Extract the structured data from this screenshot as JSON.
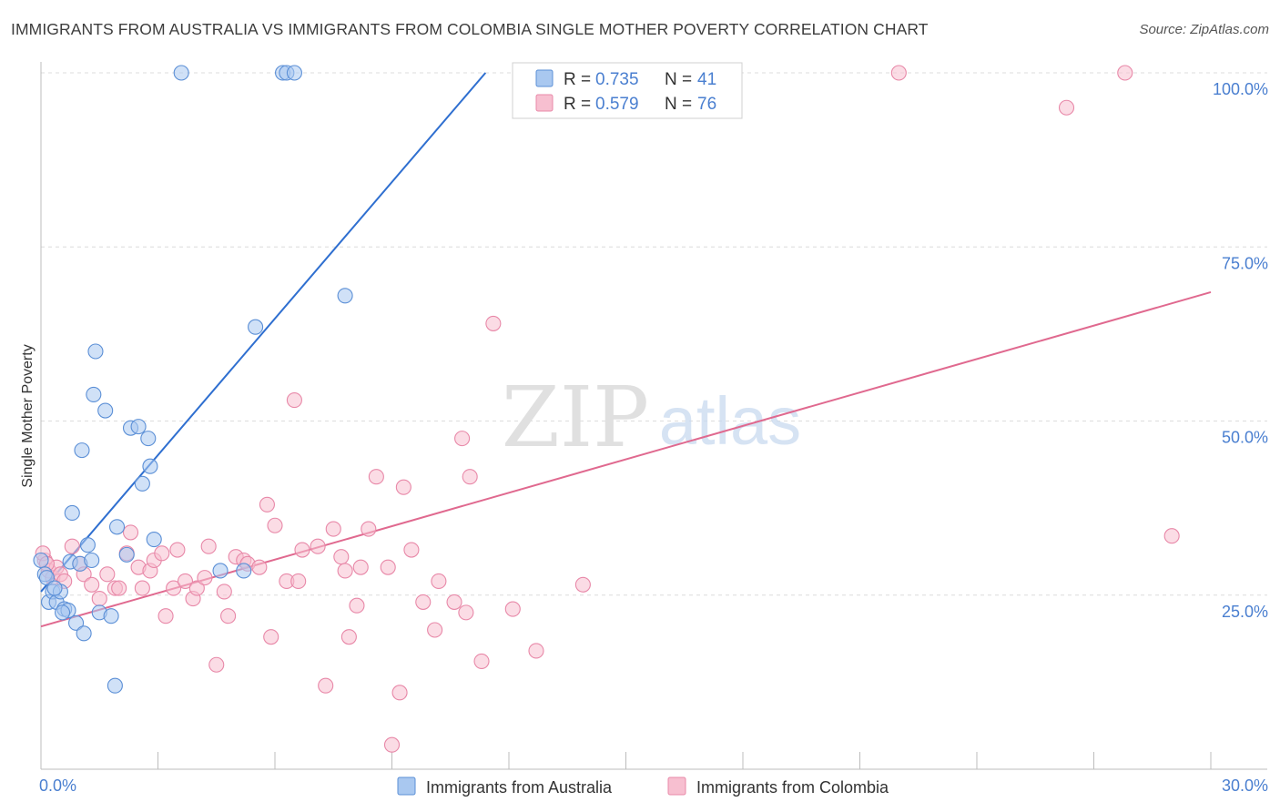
{
  "header": {
    "title": "IMMIGRANTS FROM AUSTRALIA VS IMMIGRANTS FROM COLOMBIA SINGLE MOTHER POVERTY CORRELATION CHART",
    "source": "Source: ZipAtlas.com"
  },
  "watermark": {
    "zip": "ZIP",
    "atlas": "atlas"
  },
  "colors": {
    "australia_fill": "#a9c8f0",
    "australia_stroke": "#5b8fd6",
    "australia_line": "#2f6fd0",
    "colombia_fill": "#f7bfd0",
    "colombia_stroke": "#e888a8",
    "colombia_line": "#e0698f",
    "axis_label": "#4a7fd0",
    "grid": "#dcdcdc"
  },
  "chart_data": {
    "type": "scatter",
    "title": "IMMIGRANTS FROM AUSTRALIA VS IMMIGRANTS FROM COLOMBIA SINGLE MOTHER POVERTY CORRELATION CHART",
    "xlabel": "",
    "ylabel": "Single Mother Poverty",
    "xlim": [
      0,
      30
    ],
    "ylim": [
      0,
      100
    ],
    "x_tick_labels": [
      "0.0%",
      "30.0%"
    ],
    "y_tick_labels": [
      "25.0%",
      "50.0%",
      "75.0%",
      "100.0%"
    ],
    "y_ticks": [
      25,
      50,
      75,
      100
    ],
    "legend_position": "top-center",
    "series": [
      {
        "name": "Immigrants from Australia",
        "r_label": "R =",
        "r_value": "0.735",
        "n_label": "N =",
        "n_value": "41",
        "trend": {
          "x0": 0.0,
          "y0": 25.5,
          "x1": 11.4,
          "y1": 100.0
        },
        "points": [
          [
            0.0,
            30.0
          ],
          [
            0.1,
            28.0
          ],
          [
            0.2,
            24.0
          ],
          [
            0.3,
            25.5
          ],
          [
            0.4,
            24.0
          ],
          [
            0.5,
            25.5
          ],
          [
            0.6,
            23.0
          ],
          [
            0.7,
            22.8
          ],
          [
            0.75,
            29.8
          ],
          [
            0.8,
            36.8
          ],
          [
            0.9,
            21.0
          ],
          [
            1.0,
            29.5
          ],
          [
            1.05,
            45.8
          ],
          [
            1.1,
            19.5
          ],
          [
            1.2,
            32.2
          ],
          [
            1.3,
            30.0
          ],
          [
            1.35,
            53.8
          ],
          [
            1.4,
            60.0
          ],
          [
            1.5,
            22.5
          ],
          [
            1.65,
            51.5
          ],
          [
            1.8,
            22.0
          ],
          [
            1.9,
            12.0
          ],
          [
            1.95,
            34.8
          ],
          [
            2.2,
            30.8
          ],
          [
            2.3,
            49.0
          ],
          [
            2.5,
            49.2
          ],
          [
            2.6,
            41.0
          ],
          [
            2.75,
            47.5
          ],
          [
            2.8,
            43.5
          ],
          [
            2.9,
            33.0
          ],
          [
            3.6,
            100.0
          ],
          [
            4.6,
            28.5
          ],
          [
            5.2,
            28.5
          ],
          [
            5.5,
            63.5
          ],
          [
            6.2,
            100.0
          ],
          [
            6.3,
            100.0
          ],
          [
            6.5,
            100.0
          ],
          [
            7.8,
            68.0
          ],
          [
            0.15,
            27.5
          ],
          [
            0.35,
            26.0
          ],
          [
            0.55,
            22.5
          ]
        ]
      },
      {
        "name": "Immigrants from Colombia",
        "r_label": "R =",
        "r_value": "0.579",
        "n_label": "N =",
        "n_value": "76",
        "trend": {
          "x0": 0.0,
          "y0": 20.5,
          "x1": 30.0,
          "y1": 68.5
        },
        "points": [
          [
            0.1,
            30.0
          ],
          [
            0.2,
            28.5
          ],
          [
            0.3,
            27.5
          ],
          [
            0.4,
            29.0
          ],
          [
            0.5,
            28.0
          ],
          [
            0.6,
            27.0
          ],
          [
            0.8,
            32.0
          ],
          [
            1.0,
            29.5
          ],
          [
            1.1,
            28.0
          ],
          [
            1.3,
            26.5
          ],
          [
            1.5,
            24.5
          ],
          [
            1.7,
            28.0
          ],
          [
            1.9,
            26.0
          ],
          [
            2.0,
            26.0
          ],
          [
            2.2,
            31.0
          ],
          [
            2.3,
            34.0
          ],
          [
            2.5,
            29.0
          ],
          [
            2.6,
            26.0
          ],
          [
            2.8,
            28.5
          ],
          [
            2.9,
            30.0
          ],
          [
            3.1,
            31.0
          ],
          [
            3.2,
            22.0
          ],
          [
            3.4,
            26.0
          ],
          [
            3.5,
            31.5
          ],
          [
            3.7,
            27.0
          ],
          [
            3.9,
            24.5
          ],
          [
            4.0,
            26.0
          ],
          [
            4.2,
            27.5
          ],
          [
            4.3,
            32.0
          ],
          [
            4.5,
            15.0
          ],
          [
            4.7,
            25.5
          ],
          [
            4.8,
            22.0
          ],
          [
            5.0,
            30.5
          ],
          [
            5.2,
            30.0
          ],
          [
            5.3,
            29.5
          ],
          [
            5.6,
            29.0
          ],
          [
            5.8,
            38.0
          ],
          [
            5.9,
            19.0
          ],
          [
            6.0,
            35.0
          ],
          [
            6.3,
            27.0
          ],
          [
            6.5,
            53.0
          ],
          [
            6.6,
            27.0
          ],
          [
            6.7,
            31.5
          ],
          [
            7.1,
            32.0
          ],
          [
            7.3,
            12.0
          ],
          [
            7.5,
            34.5
          ],
          [
            7.7,
            30.5
          ],
          [
            7.8,
            28.5
          ],
          [
            7.9,
            19.0
          ],
          [
            8.1,
            23.5
          ],
          [
            8.2,
            29.0
          ],
          [
            8.4,
            34.5
          ],
          [
            8.6,
            42.0
          ],
          [
            8.9,
            29.0
          ],
          [
            9.0,
            3.5
          ],
          [
            9.2,
            11.0
          ],
          [
            9.3,
            40.5
          ],
          [
            9.5,
            31.5
          ],
          [
            9.8,
            24.0
          ],
          [
            10.1,
            20.0
          ],
          [
            10.2,
            27.0
          ],
          [
            10.6,
            24.0
          ],
          [
            10.8,
            47.5
          ],
          [
            10.9,
            22.5
          ],
          [
            11.0,
            42.0
          ],
          [
            11.3,
            15.5
          ],
          [
            11.6,
            64.0
          ],
          [
            12.1,
            23.0
          ],
          [
            12.7,
            17.0
          ],
          [
            13.9,
            26.5
          ],
          [
            22.0,
            100.0
          ],
          [
            26.3,
            95.0
          ],
          [
            27.8,
            100.0
          ],
          [
            29.0,
            33.5
          ],
          [
            0.05,
            31.0
          ],
          [
            0.15,
            29.5
          ]
        ]
      }
    ]
  }
}
